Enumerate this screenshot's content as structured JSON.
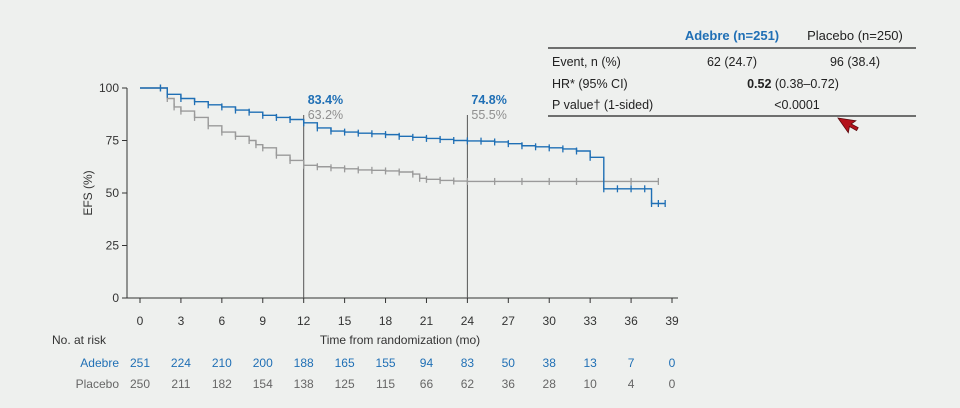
{
  "colors": {
    "adebre": "#1f6fb5",
    "placebo": "#9a9a9a",
    "background": "#eef0ee"
  },
  "chart_data": {
    "type": "line",
    "ylabel": "EFS (%)",
    "xlabel": "Time from randomization (mo)",
    "ylim": [
      0,
      100
    ],
    "xlim": [
      0,
      39
    ],
    "yticks": [
      "0",
      "25",
      "50",
      "75",
      "100"
    ],
    "xticks": [
      "0",
      "3",
      "6",
      "9",
      "12",
      "15",
      "18",
      "21",
      "24",
      "27",
      "30",
      "33",
      "36",
      "39"
    ],
    "grid": false,
    "series": [
      {
        "name": "Adebre (n=251)",
        "color": "#1f6fb5",
        "x": [
          0,
          1.5,
          2,
          3,
          4,
          5,
          6,
          7,
          8,
          9,
          10,
          11,
          12,
          13,
          14,
          15,
          16,
          17,
          18,
          19,
          20,
          21,
          22,
          23,
          24,
          25,
          26,
          27,
          28,
          29,
          30,
          31,
          32,
          33,
          34,
          35,
          36,
          37,
          37.5,
          38,
          38.5
        ],
        "y": [
          100,
          100,
          97,
          95,
          93.5,
          92,
          91,
          89.5,
          88.5,
          87,
          86,
          85,
          83.4,
          81,
          79.5,
          79,
          78.5,
          78.2,
          77.8,
          77,
          76.5,
          76,
          75.5,
          75,
          74.8,
          74.7,
          74.3,
          73.5,
          72.5,
          72,
          71.5,
          71,
          70,
          67,
          52,
          52,
          52,
          52,
          45,
          45,
          45
        ]
      },
      {
        "name": "Placebo (n=250)",
        "color": "#9a9a9a",
        "x": [
          0,
          1.5,
          2,
          2.5,
          3,
          4,
          5,
          6,
          7,
          8,
          8.5,
          9,
          10,
          11,
          12,
          13,
          14,
          15,
          16,
          17,
          18,
          19,
          20,
          20.5,
          21,
          22,
          23,
          24,
          26,
          28,
          30,
          32,
          34,
          36,
          38
        ],
        "y": [
          100,
          100,
          95,
          91,
          89,
          86,
          82,
          79,
          77,
          75,
          73,
          71.5,
          68,
          65.5,
          63.2,
          62.5,
          62,
          61.5,
          61,
          60.8,
          60.5,
          60,
          59,
          57,
          56.5,
          56,
          55.7,
          55.5,
          55.5,
          55.5,
          55.5,
          55.5,
          55.5,
          55.5,
          55.5
        ]
      }
    ],
    "annotations": [
      {
        "x": 12,
        "adebre": "83.4%",
        "placebo": "63.2%"
      },
      {
        "x": 24,
        "adebre": "74.8%",
        "placebo": "55.5%"
      }
    ]
  },
  "risk_table": {
    "title": "No. at risk",
    "rows": [
      {
        "label": "Adebre",
        "values": [
          "251",
          "224",
          "210",
          "200",
          "188",
          "165",
          "155",
          "94",
          "83",
          "50",
          "38",
          "13",
          "7",
          "0"
        ]
      },
      {
        "label": "Placebo",
        "values": [
          "250",
          "211",
          "182",
          "154",
          "138",
          "125",
          "115",
          "66",
          "62",
          "36",
          "28",
          "10",
          "4",
          "0"
        ]
      }
    ]
  },
  "stats_table": {
    "headers": [
      "Adebre (n=251)",
      "Placebo (n=250)"
    ],
    "rows": [
      {
        "label": "Event, n (%)",
        "adebre": "62 (24.7)",
        "placebo": "96 (38.4)"
      },
      {
        "label": "HR* (95% CI)",
        "value_bold": "0.52",
        "value_rest": " (0.38–0.72)"
      },
      {
        "label": "P value† (1-sided)",
        "value": "<0.0001"
      }
    ]
  }
}
